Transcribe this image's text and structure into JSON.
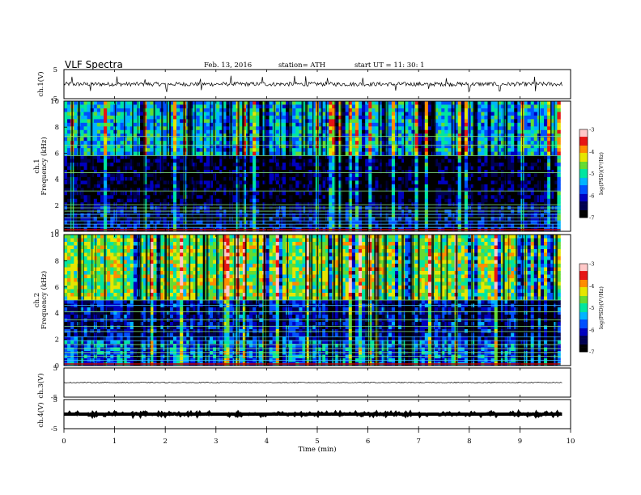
{
  "header": {
    "title": "VLF  Spectra",
    "date": "Feb. 13,  2016",
    "station": "station= ATH",
    "start": "start  UT  =    11: 30: 1"
  },
  "chart_data": [
    {
      "type": "line",
      "name": "ch1-waveform",
      "ylabel": "ch.1(V)",
      "ylim": [
        -5,
        5
      ],
      "yticks": [
        "5",
        "-5"
      ],
      "xlim": [
        0,
        10
      ],
      "baseline_v": 0,
      "noise_v": 0.7,
      "spikes_min": [
        0.16,
        0.52,
        1.05,
        1.6,
        2.02,
        2.7,
        3.3,
        3.92,
        4.55,
        4.77,
        5.2,
        5.9,
        6.55,
        7.2,
        7.55,
        8.0,
        8.6,
        9.3
      ]
    },
    {
      "type": "heatmap",
      "name": "ch1-spectrogram",
      "ylabel": "ch.1\nFrequency  (kHz)",
      "ylim": [
        0,
        10
      ],
      "yticks": [
        "0",
        "2",
        "4",
        "6",
        "8",
        "10"
      ],
      "xlim": [
        0,
        9.8
      ],
      "data_xmax_min": 9.8,
      "log_psd_range": [
        -7,
        -3
      ],
      "bands": [
        {
          "from_khz": 0,
          "to_khz": 2,
          "level": -6.3
        },
        {
          "from_khz": 2,
          "to_khz": 5.7,
          "level": -6.6
        },
        {
          "from_khz": 5.7,
          "to_khz": 10,
          "level": -5.3
        }
      ],
      "lines_khz": [
        0.3,
        0.55,
        0.8,
        1.05,
        1.3,
        1.55,
        1.8,
        2.05,
        3.1,
        4.5,
        5.8,
        6.6,
        7.3
      ],
      "colorbar": {
        "label": "log(PSD)(V²/Hz)",
        "ticks": [
          "-3",
          "-4",
          "-5",
          "-6",
          "-7"
        ]
      }
    },
    {
      "type": "heatmap",
      "name": "ch2-spectrogram",
      "ylabel": "ch.2\nFrequency  (kHz)",
      "ylim": [
        0,
        10
      ],
      "yticks": [
        "0",
        "2",
        "4",
        "6",
        "8",
        "10"
      ],
      "xlim": [
        0,
        9.8
      ],
      "data_xmax_min": 9.8,
      "log_psd_range": [
        -7,
        -3
      ],
      "bands": [
        {
          "from_khz": 0,
          "to_khz": 2,
          "level": -5.6
        },
        {
          "from_khz": 2,
          "to_khz": 5,
          "level": -6.1
        },
        {
          "from_khz": 5,
          "to_khz": 10,
          "level": -4.6
        }
      ],
      "lines_khz": [
        0.4,
        0.7,
        1.0,
        1.3,
        1.6,
        1.9,
        2.2,
        2.6,
        3.0,
        3.5,
        4.1,
        4.6,
        5.0
      ],
      "colorbar": {
        "label": "log(PSD)(V²/Hz)",
        "ticks": [
          "-3",
          "-4",
          "-5",
          "-6",
          "-7"
        ]
      }
    },
    {
      "type": "line",
      "name": "ch3-waveform",
      "ylabel": "ch.3(V)",
      "ylim": [
        -5,
        5
      ],
      "yticks": [
        "5",
        "-5"
      ],
      "xlim": [
        0,
        10
      ],
      "baseline_v": 0,
      "noise_v": 0.15
    },
    {
      "type": "line",
      "name": "ch4-waveform",
      "ylabel": "ch.4(V)",
      "ylim": [
        -5,
        5
      ],
      "yticks": [
        "5",
        "-5"
      ],
      "xlim": [
        0,
        10
      ],
      "baseline_v": 0,
      "noise_v": 0.9
    }
  ],
  "xaxis": {
    "label": "Time  (min)",
    "ticks": [
      "0",
      "1",
      "2",
      "3",
      "4",
      "5",
      "6",
      "7",
      "8",
      "9",
      "10"
    ],
    "range": [
      0,
      10
    ]
  },
  "colors": {
    "panel_border": "#000000",
    "trace": "#000000",
    "cmap": [
      "#000000",
      "#000050",
      "#0000c0",
      "#0050ff",
      "#00b4ff",
      "#00e6a0",
      "#64dc32",
      "#e6e600",
      "#ff8c00",
      "#e61414",
      "#ffc8c8"
    ]
  }
}
